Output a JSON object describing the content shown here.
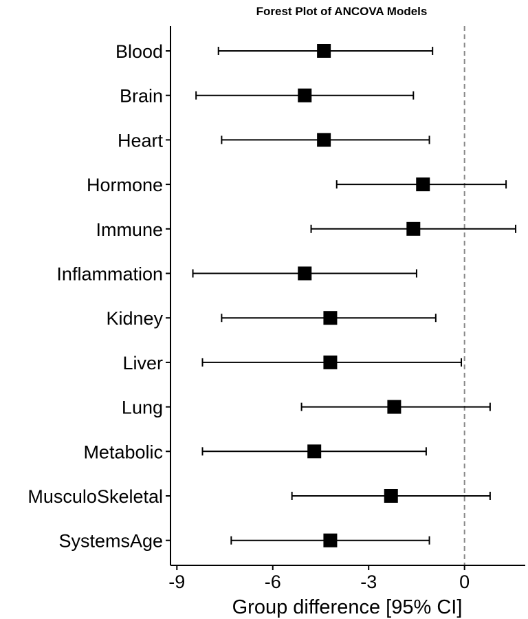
{
  "chart_data": {
    "type": "forest",
    "title": "Forest Plot of ANCOVA Models",
    "xlabel": "Group difference [95% CI]",
    "ylabel": "",
    "xlim": [
      -9.2,
      1.9
    ],
    "xticks": [
      -9,
      -6,
      -3,
      0
    ],
    "xtick_labels": [
      "-9",
      "-6",
      "-3",
      "0"
    ],
    "reference_line": 0,
    "categories": [
      "Blood",
      "Brain",
      "Heart",
      "Hormone",
      "Immune",
      "Inflammation",
      "Kidney",
      "Liver",
      "Lung",
      "Metabolic",
      "MusculoSkeletal",
      "SystemsAge"
    ],
    "estimates": [
      -4.4,
      -5.0,
      -4.4,
      -1.3,
      -1.6,
      -5.0,
      -4.2,
      -4.2,
      -2.2,
      -4.7,
      -2.3,
      -4.2
    ],
    "ci_lower": [
      -7.7,
      -8.4,
      -7.6,
      -4.0,
      -4.8,
      -8.5,
      -7.6,
      -8.2,
      -5.1,
      -8.2,
      -5.4,
      -7.3
    ],
    "ci_upper": [
      -1.0,
      -1.6,
      -1.1,
      1.3,
      1.6,
      -1.5,
      -0.9,
      -0.1,
      0.8,
      -1.2,
      0.8,
      -1.1
    ],
    "grid": false,
    "legend": "none"
  }
}
